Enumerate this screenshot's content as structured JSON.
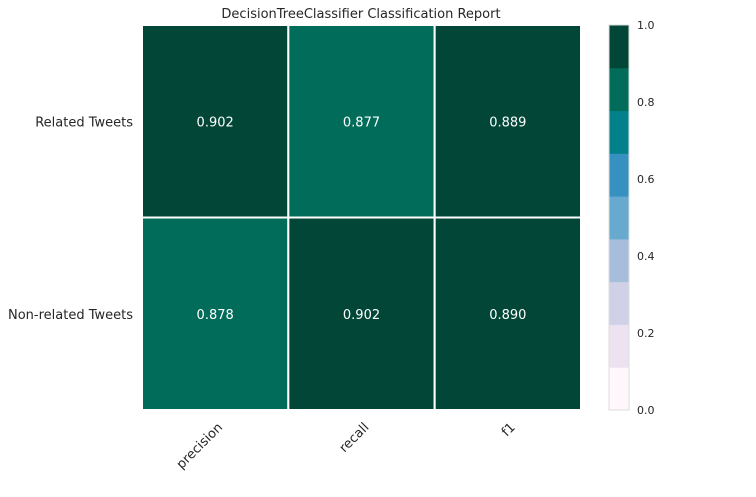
{
  "chart_data": {
    "type": "heatmap",
    "title": "DecisionTreeClassifier Classification Report",
    "rows": [
      "Related Tweets",
      "Non-related Tweets"
    ],
    "columns": [
      "precision",
      "recall",
      "f1"
    ],
    "values": [
      [
        0.902,
        0.877,
        0.889
      ],
      [
        0.878,
        0.902,
        0.89
      ]
    ],
    "value_labels": [
      [
        "0.902",
        "0.877",
        "0.889"
      ],
      [
        "0.878",
        "0.902",
        "0.890"
      ]
    ],
    "colorbar": {
      "range": [
        0,
        1
      ],
      "ticks": [
        "0.0",
        "0.2",
        "0.4",
        "0.6",
        "0.8",
        "1.0"
      ],
      "tick_values": [
        0,
        0.2,
        0.4,
        0.6,
        0.8,
        1.0
      ],
      "bins": 9,
      "colors": [
        "#fff7fb",
        "#ece2f0",
        "#d0d1e6",
        "#a6bddb",
        "#67a9cf",
        "#3690c0",
        "#02818a",
        "#016c59",
        "#014636"
      ]
    },
    "cell_colors": [
      [
        "#014636",
        "#016c59",
        "#014636"
      ],
      [
        "#016c59",
        "#014636",
        "#014636"
      ]
    ]
  }
}
